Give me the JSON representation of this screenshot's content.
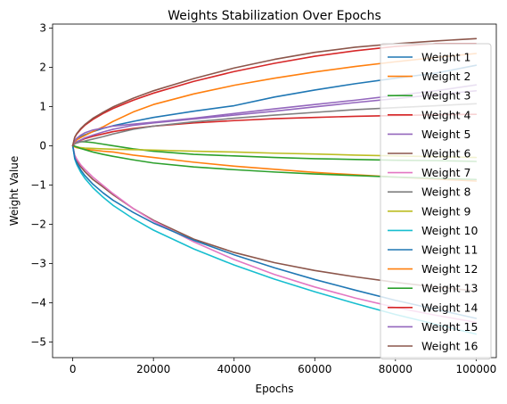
{
  "chart_data": {
    "type": "line",
    "title": "Weights Stabilization Over Epochs",
    "xlabel": "Epochs",
    "ylabel": "Weight Value",
    "xlim": [
      -5000,
      105000
    ],
    "ylim": [
      -5.4,
      3.1
    ],
    "xticks": [
      0,
      20000,
      40000,
      60000,
      80000,
      100000
    ],
    "xtick_labels": [
      "0",
      "20000",
      "40000",
      "60000",
      "80000",
      "100000"
    ],
    "yticks": [
      -5,
      -4,
      -3,
      -2,
      -1,
      0,
      1,
      2,
      3
    ],
    "ytick_labels": [
      "−5",
      "−4",
      "−3",
      "−2",
      "−1",
      "0",
      "1",
      "2",
      "3"
    ],
    "grid": false,
    "legend_position": "right",
    "x": [
      0,
      500,
      1000,
      2000,
      3000,
      5000,
      7500,
      10000,
      15000,
      20000,
      30000,
      40000,
      50000,
      60000,
      70000,
      80000,
      90000,
      100000
    ],
    "series": [
      {
        "name": "Weight 1",
        "color": "#1f77b4",
        "values": [
          0,
          0.11,
          0.16,
          0.23,
          0.28,
          0.36,
          0.44,
          0.51,
          0.62,
          0.72,
          0.88,
          1.02,
          1.24,
          1.42,
          1.58,
          1.72,
          1.85,
          2.05
        ]
      },
      {
        "name": "Weight 2",
        "color": "#ff7f0e",
        "values": [
          0,
          -0.03,
          -0.05,
          -0.07,
          -0.09,
          -0.11,
          -0.14,
          -0.16,
          -0.24,
          -0.3,
          -0.42,
          -0.52,
          -0.6,
          -0.68,
          -0.74,
          -0.8,
          -0.85,
          -0.9
        ]
      },
      {
        "name": "Weight 3",
        "color": "#2ca02c",
        "values": [
          0,
          0.06,
          0.08,
          0.1,
          0.1,
          0.08,
          0.04,
          0.0,
          -0.08,
          -0.14,
          -0.22,
          -0.26,
          -0.3,
          -0.33,
          -0.35,
          -0.37,
          -0.38,
          -0.4
        ]
      },
      {
        "name": "Weight 4",
        "color": "#d62728",
        "values": [
          0,
          0.06,
          0.09,
          0.14,
          0.18,
          0.24,
          0.3,
          0.36,
          0.44,
          0.5,
          0.58,
          0.64,
          0.69,
          0.72,
          0.75,
          0.77,
          0.79,
          0.8
        ]
      },
      {
        "name": "Weight 5",
        "color": "#9467bd",
        "values": [
          0,
          0.07,
          0.1,
          0.15,
          0.2,
          0.27,
          0.35,
          0.42,
          0.52,
          0.58,
          0.68,
          0.78,
          0.88,
          0.99,
          1.1,
          1.2,
          1.3,
          1.4
        ]
      },
      {
        "name": "Weight 6",
        "color": "#8c564b",
        "values": [
          0,
          -0.27,
          -0.38,
          -0.54,
          -0.66,
          -0.86,
          -1.05,
          -1.25,
          -1.6,
          -1.9,
          -2.38,
          -2.72,
          -2.98,
          -3.18,
          -3.34,
          -3.48,
          -3.6,
          -3.7
        ]
      },
      {
        "name": "Weight 7",
        "color": "#e377c2",
        "values": [
          0,
          -0.24,
          -0.34,
          -0.49,
          -0.6,
          -0.8,
          -1.01,
          -1.22,
          -1.6,
          -1.92,
          -2.45,
          -2.9,
          -3.28,
          -3.6,
          -3.88,
          -4.12,
          -4.32,
          -4.5
        ]
      },
      {
        "name": "Weight 8",
        "color": "#7f7f7f",
        "values": [
          0,
          0.05,
          0.07,
          0.1,
          0.12,
          0.17,
          0.23,
          0.3,
          0.42,
          0.5,
          0.61,
          0.7,
          0.78,
          0.85,
          0.92,
          0.97,
          1.02,
          1.07
        ]
      },
      {
        "name": "Weight 9",
        "color": "#bcbd22",
        "values": [
          0,
          -0.02,
          -0.03,
          -0.05,
          -0.06,
          -0.07,
          -0.08,
          -0.09,
          -0.1,
          -0.11,
          -0.14,
          -0.16,
          -0.19,
          -0.21,
          -0.24,
          -0.26,
          -0.28,
          -0.3
        ]
      },
      {
        "name": "Weight 10",
        "color": "#17becf",
        "values": [
          0,
          -0.34,
          -0.48,
          -0.68,
          -0.83,
          -1.07,
          -1.31,
          -1.52,
          -1.86,
          -2.15,
          -2.63,
          -3.04,
          -3.4,
          -3.72,
          -4.02,
          -4.3,
          -4.55,
          -4.8
        ]
      },
      {
        "name": "Weight 11",
        "color": "#1f77b4",
        "values": [
          0,
          -0.31,
          -0.44,
          -0.62,
          -0.76,
          -0.98,
          -1.2,
          -1.39,
          -1.7,
          -1.97,
          -2.41,
          -2.78,
          -3.11,
          -3.41,
          -3.68,
          -3.94,
          -4.17,
          -4.4
        ]
      },
      {
        "name": "Weight 12",
        "color": "#ff7f0e",
        "values": [
          0,
          0.1,
          0.15,
          0.21,
          0.26,
          0.36,
          0.48,
          0.62,
          0.86,
          1.05,
          1.32,
          1.54,
          1.72,
          1.88,
          2.02,
          2.14,
          2.25,
          2.35
        ]
      },
      {
        "name": "Weight 13",
        "color": "#2ca02c",
        "values": [
          0,
          -0.01,
          -0.03,
          -0.07,
          -0.1,
          -0.16,
          -0.22,
          -0.27,
          -0.36,
          -0.44,
          -0.54,
          -0.61,
          -0.67,
          -0.72,
          -0.76,
          -0.8,
          -0.83,
          -0.86
        ]
      },
      {
        "name": "Weight 14",
        "color": "#d62728",
        "values": [
          0,
          0.21,
          0.3,
          0.42,
          0.52,
          0.67,
          0.82,
          0.95,
          1.16,
          1.34,
          1.64,
          1.89,
          2.1,
          2.28,
          2.42,
          2.53,
          2.6,
          2.6
        ]
      },
      {
        "name": "Weight 15",
        "color": "#9467bd",
        "values": [
          0,
          0.13,
          0.19,
          0.27,
          0.33,
          0.4,
          0.45,
          0.5,
          0.55,
          0.6,
          0.7,
          0.82,
          0.94,
          1.05,
          1.16,
          1.28,
          1.4,
          1.55
        ]
      },
      {
        "name": "Weight 16",
        "color": "#8c564b",
        "values": [
          0,
          0.22,
          0.31,
          0.44,
          0.54,
          0.7,
          0.85,
          0.99,
          1.21,
          1.4,
          1.71,
          1.98,
          2.2,
          2.38,
          2.51,
          2.6,
          2.67,
          2.73
        ]
      }
    ]
  }
}
